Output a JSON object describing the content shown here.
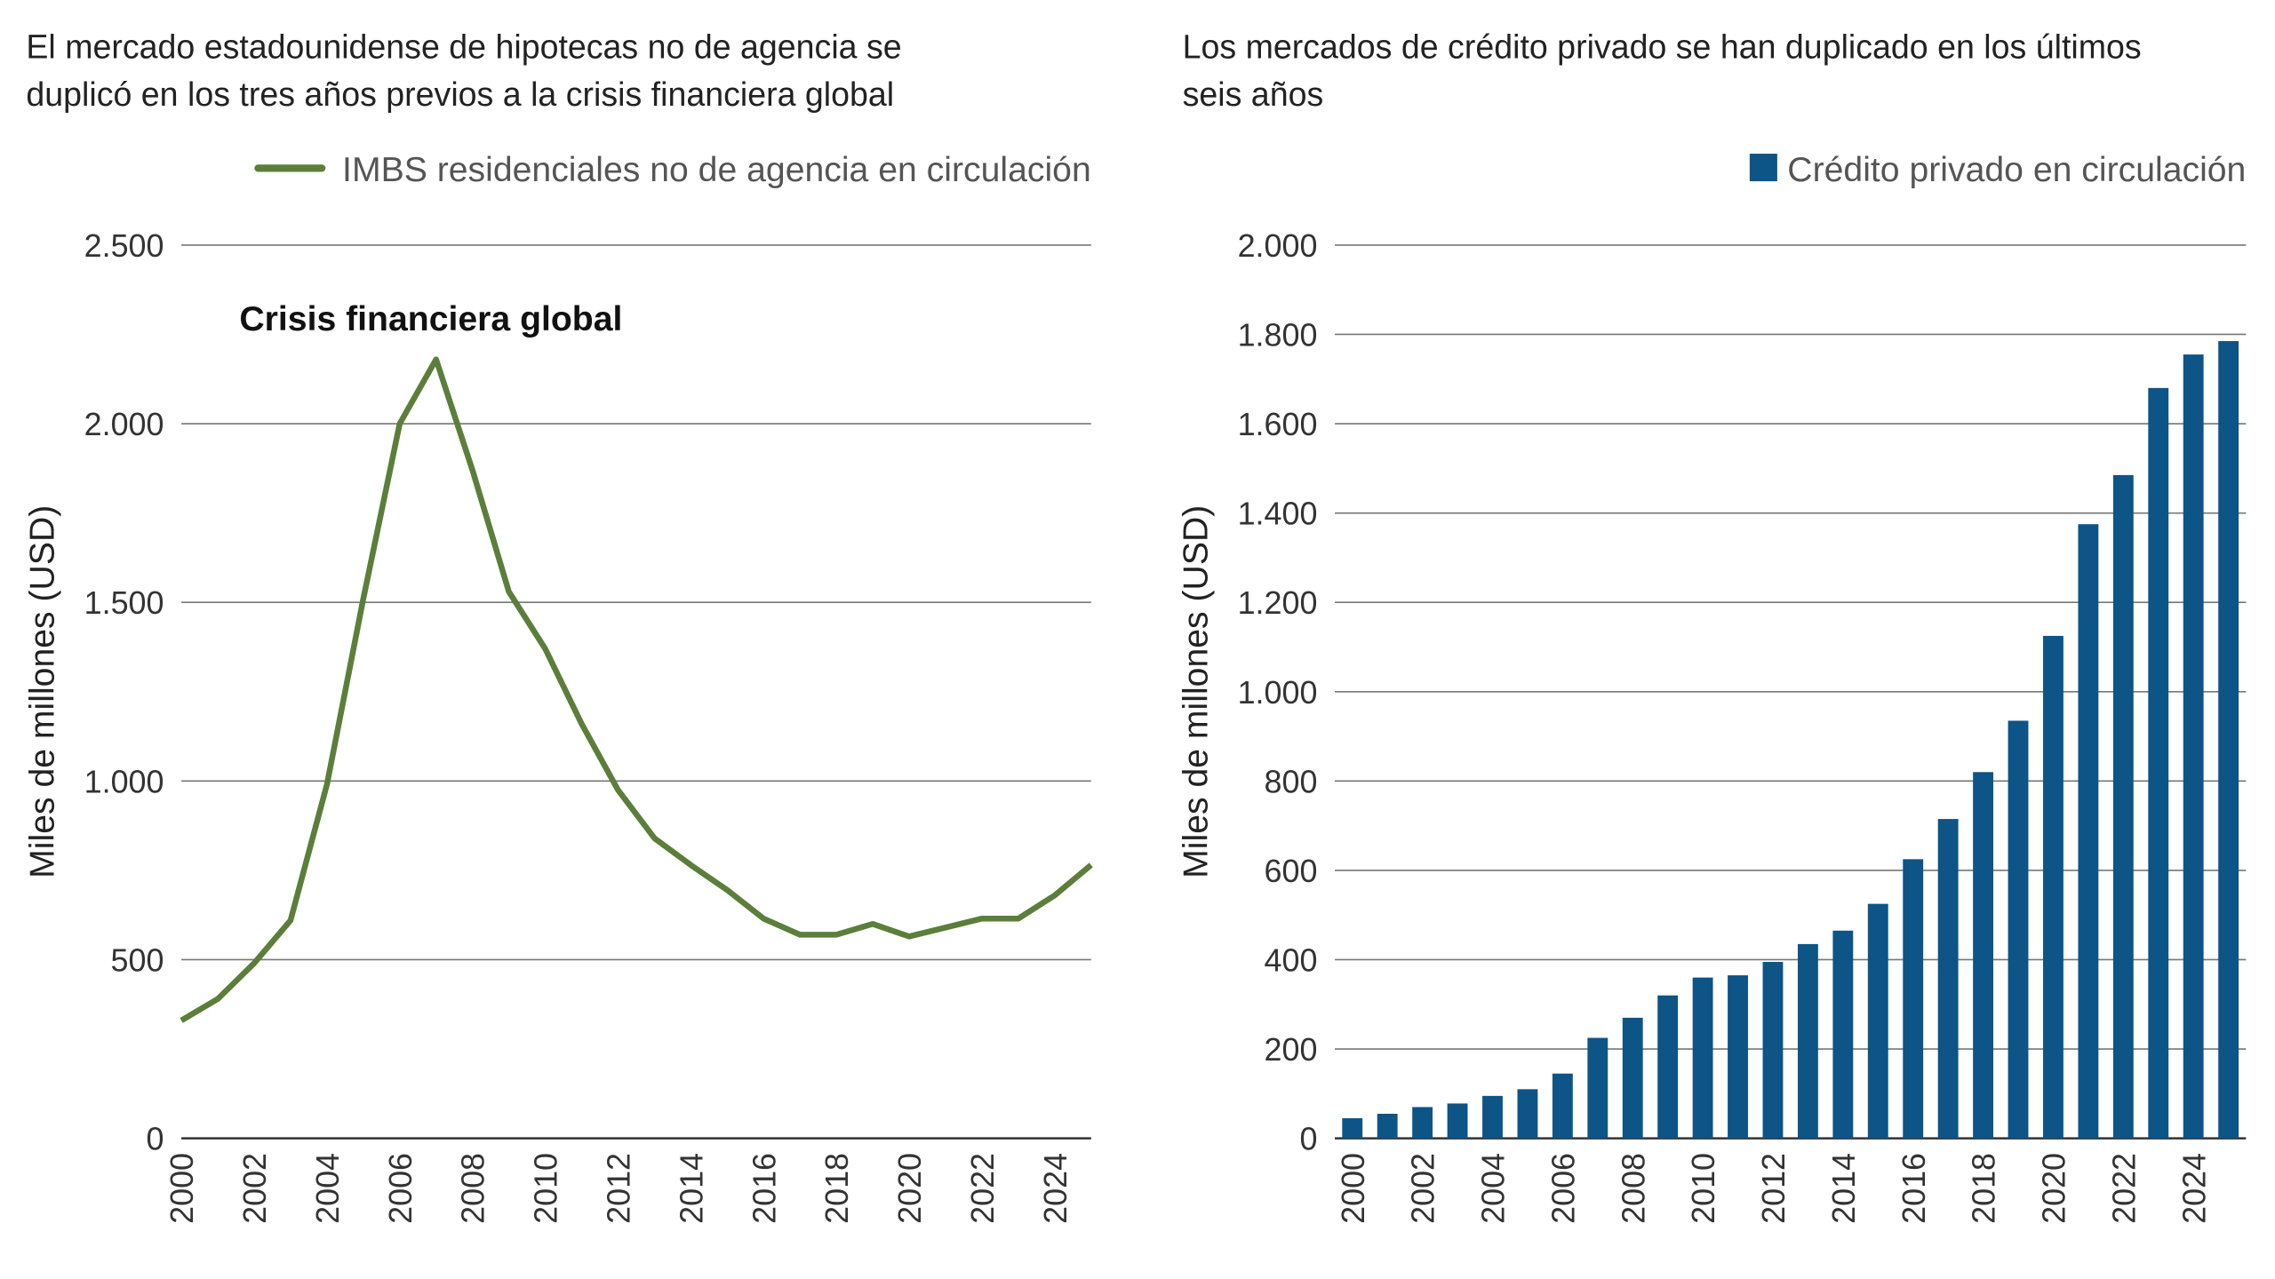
{
  "chart_data": [
    {
      "type": "line",
      "title": [
        "El mercado estadounidense de hipotecas no de agencia se",
        "duplicó en los tres años previos a la crisis financiera global"
      ],
      "ylabel": "Miles de millones (USD)",
      "annotation": "Crisis financiera global",
      "x": [
        2000,
        2001,
        2002,
        2003,
        2004,
        2005,
        2006,
        2007,
        2008,
        2009,
        2010,
        2011,
        2012,
        2013,
        2014,
        2015,
        2016,
        2017,
        2018,
        2019,
        2020,
        2021,
        2022,
        2023,
        2024,
        2025
      ],
      "series": [
        {
          "name": "IMBS residenciales no de agencia en circulación",
          "color": "#5b7f3a",
          "values": [
            330,
            390,
            490,
            610,
            990,
            1510,
            2000,
            2180,
            1870,
            1530,
            1370,
            1160,
            975,
            840,
            765,
            695,
            615,
            570,
            570,
            600,
            565,
            590,
            615,
            615,
            680,
            765
          ]
        }
      ],
      "xlim": [
        2000,
        2025
      ],
      "xticks": [
        2000,
        2002,
        2004,
        2006,
        2008,
        2010,
        2012,
        2014,
        2016,
        2018,
        2020,
        2022,
        2024
      ],
      "ylim": [
        0,
        2500
      ],
      "yticks": [
        0,
        500,
        {
          "value": 1000,
          "label": "1.000"
        },
        {
          "value": 1500,
          "label": "1.500"
        },
        {
          "value": 2000,
          "label": "2.000"
        },
        {
          "value": 2500,
          "label": "2.500"
        }
      ],
      "grid": true
    },
    {
      "type": "bar",
      "title": [
        "Los mercados de crédito privado se han duplicado en los últimos",
        "seis años"
      ],
      "ylabel": "Miles de millones (USD)",
      "categories": [
        "2000",
        null,
        "2002",
        null,
        "2004",
        null,
        "2006",
        null,
        "2008",
        null,
        "2010",
        null,
        "2012",
        null,
        "2014",
        null,
        "2016",
        null,
        "2018",
        null,
        "2020",
        null,
        "2022",
        null,
        "2024",
        null
      ],
      "series": [
        {
          "name": "Crédito privado en circulación",
          "color": "#0d5487",
          "values": [
            45,
            55,
            70,
            78,
            95,
            110,
            145,
            225,
            270,
            320,
            360,
            365,
            395,
            435,
            465,
            525,
            625,
            715,
            820,
            935,
            1125,
            1375,
            1485,
            1680,
            1755,
            1785
          ]
        }
      ],
      "ylim": [
        0,
        2000
      ],
      "yticks": [
        0,
        200,
        400,
        600,
        800,
        {
          "value": 1000,
          "label": "1.000"
        },
        {
          "value": 1200,
          "label": "1.200"
        },
        {
          "value": 1400,
          "label": "1.400"
        },
        {
          "value": 1600,
          "label": "1.600"
        },
        {
          "value": 1800,
          "label": "1.800"
        },
        {
          "value": 2000,
          "label": "2.000"
        }
      ],
      "grid": true
    }
  ]
}
